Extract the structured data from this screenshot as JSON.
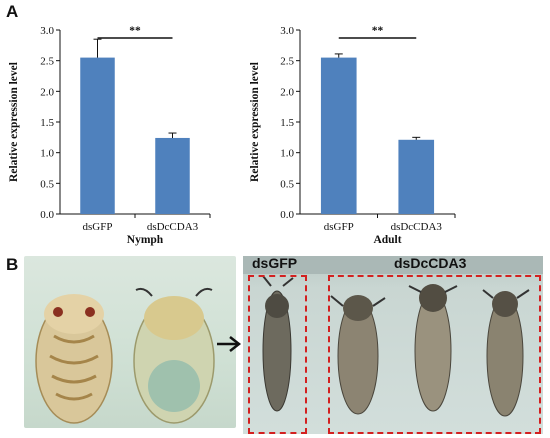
{
  "panel_a": {
    "letter": "A"
  },
  "panel_b": {
    "letter": "B",
    "label_gfp": "dsGFP",
    "label_cda3": "dsDcCDA3"
  },
  "colors": {
    "bar": "#4f81bd",
    "axis": "#111111",
    "box": "#d32020"
  },
  "chart_data": [
    {
      "type": "bar",
      "title": "",
      "xlabel": "Nymph",
      "ylabel": "Relative expression level",
      "categories": [
        "dsGFP",
        "dsDcCDA3"
      ],
      "values": [
        2.55,
        1.24
      ],
      "errors": [
        0.3,
        0.08
      ],
      "ylim": [
        0,
        3.0
      ],
      "yticks": [
        "0.0",
        "0.5",
        "1.0",
        "1.5",
        "2.0",
        "2.5",
        "3.0"
      ],
      "significance": "**"
    },
    {
      "type": "bar",
      "title": "",
      "xlabel": "Adult",
      "ylabel": "Relative expression level",
      "categories": [
        "dsGFP",
        "dsDcCDA3"
      ],
      "values": [
        2.55,
        1.21
      ],
      "errors": [
        0.06,
        0.04
      ],
      "ylim": [
        0,
        3.0
      ],
      "yticks": [
        "0.0",
        "0.5",
        "1.0",
        "1.5",
        "2.0",
        "2.5",
        "3.0"
      ],
      "significance": "**"
    }
  ]
}
